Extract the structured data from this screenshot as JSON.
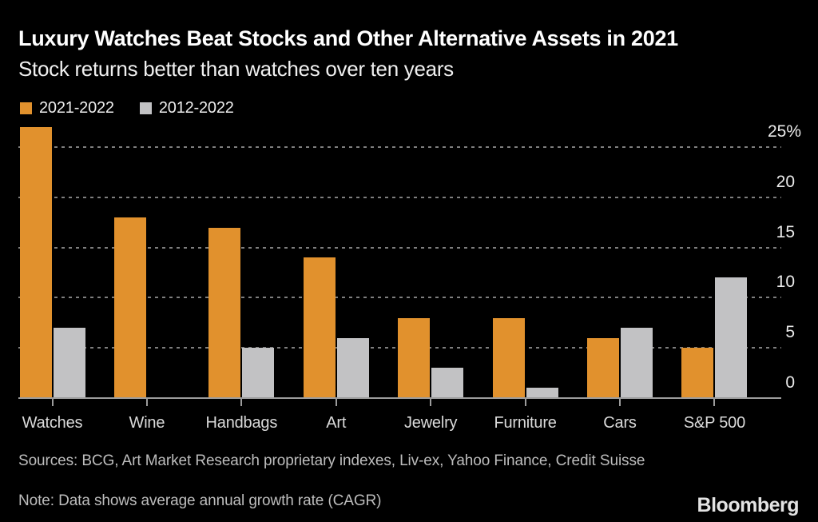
{
  "chart_data": {
    "type": "bar",
    "title": "Luxury Watches Beat Stocks and Other Alternative Assets in 2021",
    "subtitle": "Stock returns better than watches over ten years",
    "categories": [
      "Watches",
      "Wine",
      "Handbags",
      "Art",
      "Jewelry",
      "Furniture",
      "Cars",
      "S&P 500"
    ],
    "series": [
      {
        "name": "2021-2022",
        "color": "#e1912d",
        "values": [
          27,
          18,
          17,
          14,
          8,
          8,
          6,
          5
        ]
      },
      {
        "name": "2012-2022",
        "color": "#c2c2c4",
        "values": [
          7,
          0.1,
          5,
          6,
          3,
          1,
          7,
          12
        ]
      }
    ],
    "unit": "%",
    "xlabel": "",
    "ylabel": "",
    "y_ticks": [
      0,
      5,
      10,
      15,
      20,
      25
    ],
    "y_tick_labels": [
      "0",
      "5",
      "10",
      "15",
      "20",
      "25%"
    ],
    "ylim": [
      0,
      27
    ],
    "grid": "horizontal-dashed",
    "legend_position": "top-left"
  },
  "colors": {
    "background": "#000000",
    "bar_orange": "#e1912d",
    "bar_gray": "#c2c2c4",
    "gridline": "#7f7f7f",
    "axis": "#9c9c9c"
  },
  "footer": {
    "sources": "Sources: BCG, Art Market Research proprietary indexes, Liv-ex, Yahoo Finance, Credit Suisse",
    "note": "Note: Data shows average annual growth rate (CAGR)",
    "logo": "Bloomberg"
  }
}
